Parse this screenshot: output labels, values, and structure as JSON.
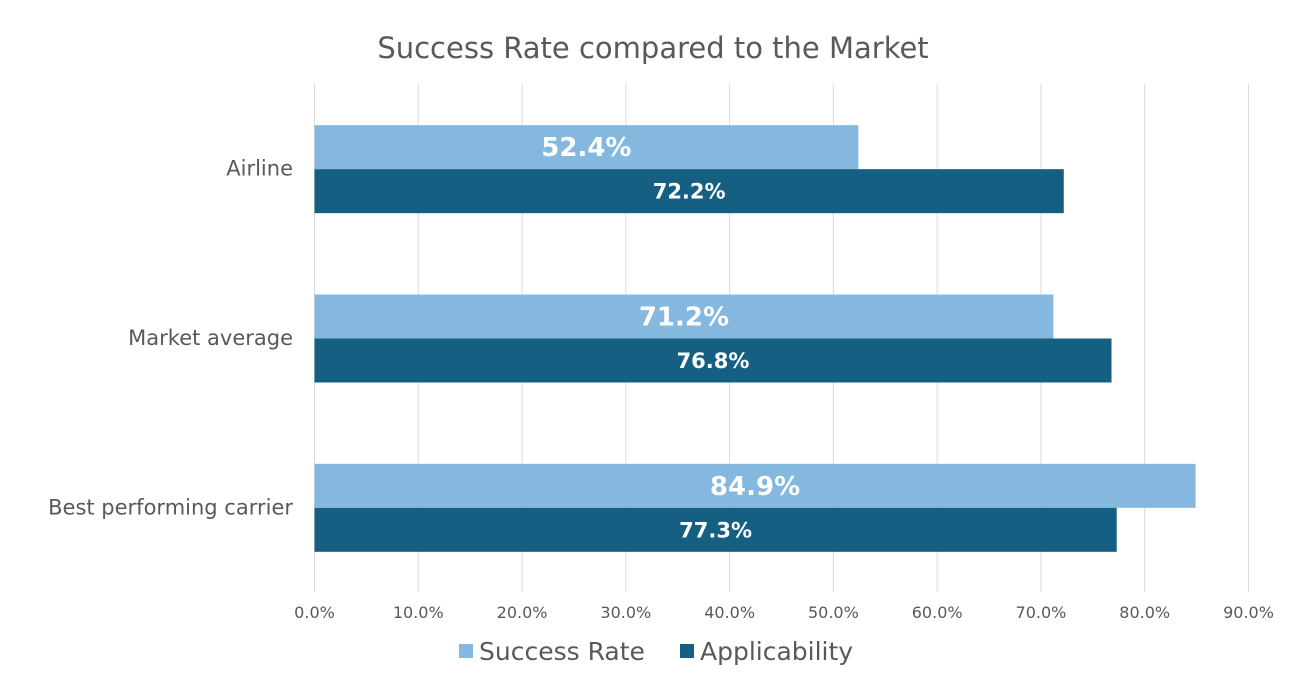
{
  "chart_data": {
    "type": "bar",
    "orientation": "horizontal",
    "title": "Success Rate compared to the Market",
    "categories": [
      "Airline",
      "Market average",
      "Best performing carrier"
    ],
    "series": [
      {
        "name": "Success Rate",
        "values": [
          52.4,
          71.2,
          84.9
        ],
        "labels": [
          "52.4%",
          "71.2%",
          "84.9%"
        ],
        "color": "#84b8df"
      },
      {
        "name": "Applicability",
        "values": [
          72.2,
          76.8,
          77.3
        ],
        "labels": [
          "72.2%",
          "76.8%",
          "77.3%"
        ],
        "color": "#156082"
      }
    ],
    "xlim": [
      0,
      90
    ],
    "xticks": [
      "0.0%",
      "10.0%",
      "20.0%",
      "30.0%",
      "40.0%",
      "50.0%",
      "60.0%",
      "70.0%",
      "80.0%",
      "90.0%"
    ],
    "grid": true,
    "legend_position": "bottom"
  }
}
